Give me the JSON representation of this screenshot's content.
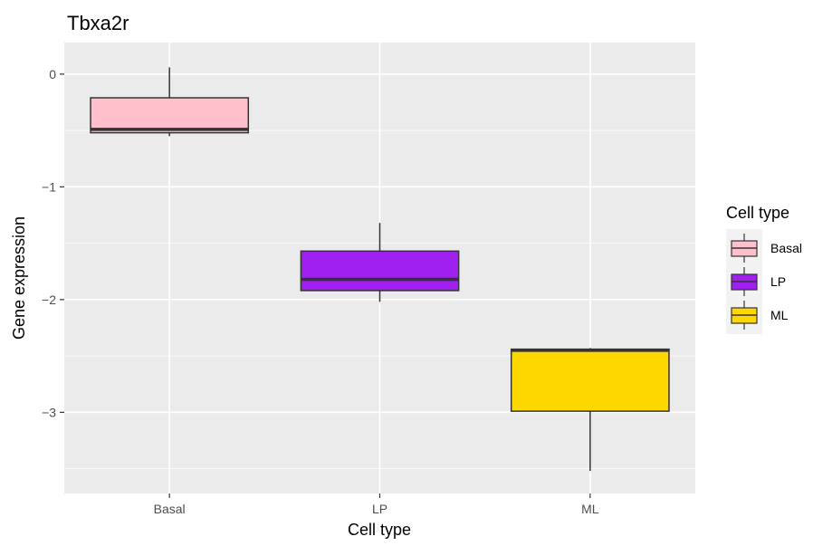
{
  "chart_data": {
    "type": "boxplot",
    "title": "Tbxa2r",
    "xlabel": "Cell type",
    "ylabel": "Gene expression",
    "categories": [
      "Basal",
      "LP",
      "ML"
    ],
    "ylim": [
      -3.72,
      0.28
    ],
    "yticks": [
      0,
      -1,
      -2,
      -3
    ],
    "ytick_labels": [
      "0",
      "−1",
      "−2",
      "−3"
    ],
    "grid": true,
    "boxes": [
      {
        "category": "Basal",
        "min": -0.55,
        "q1": -0.52,
        "median": -0.49,
        "q3": -0.21,
        "max": 0.06,
        "color": "#FFC0CB"
      },
      {
        "category": "LP",
        "min": -2.02,
        "q1": -1.92,
        "median": -1.82,
        "q3": -1.57,
        "max": -1.32,
        "color": "#A020F0"
      },
      {
        "category": "ML",
        "min": -3.52,
        "q1": -2.99,
        "median": -2.45,
        "q3": -2.44,
        "max": -2.43,
        "color": "#FFD700"
      }
    ],
    "legend": {
      "title": "Cell type",
      "position": "right",
      "entries": [
        {
          "label": "Basal",
          "color": "#FFC0CB"
        },
        {
          "label": "LP",
          "color": "#A020F0"
        },
        {
          "label": "ML",
          "color": "#FFD700"
        }
      ]
    },
    "colors": {
      "panel": "#EBEBEB",
      "grid": "#FFFFFF",
      "outline": "#333333"
    }
  }
}
